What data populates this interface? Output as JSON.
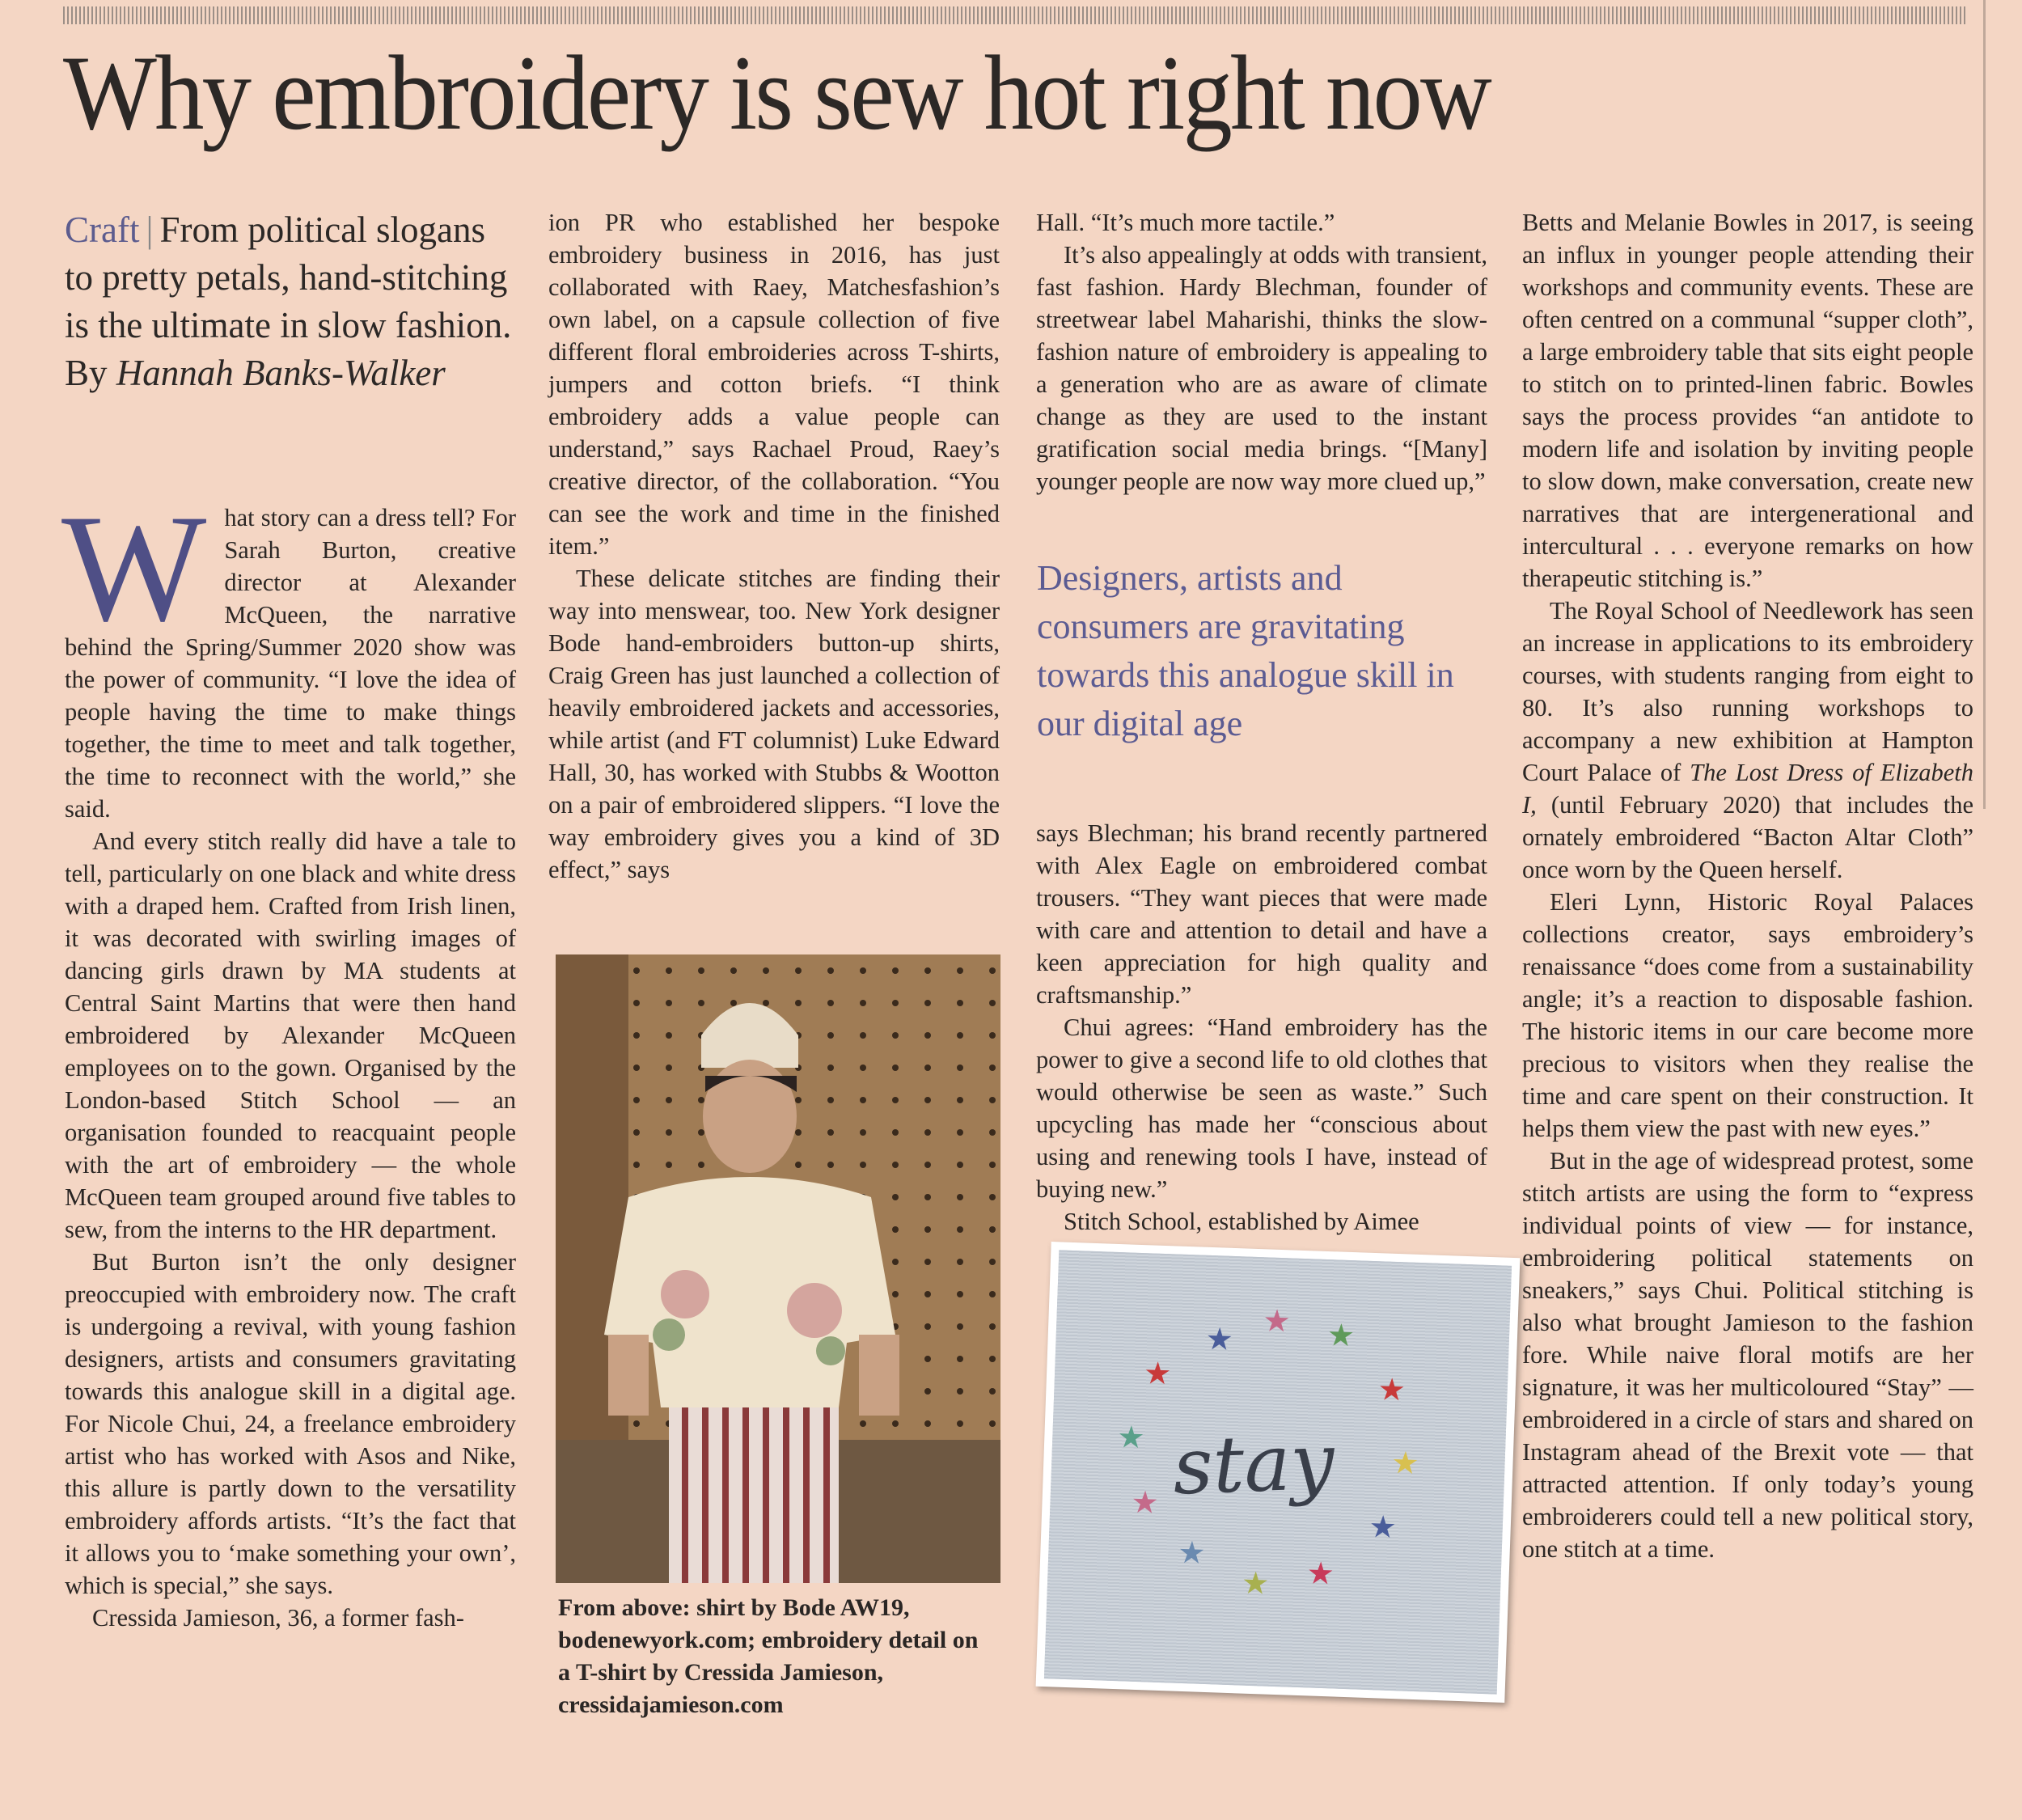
{
  "headline": "Why embroidery is sew hot right now",
  "standfirst": {
    "kicker": "Craft",
    "separator": "|",
    "text": "From political slogans to pretty petals, hand-stitching is the ultimate in slow fashion.",
    "by": "By",
    "author": "Hannah Banks-Walker"
  },
  "columns": {
    "col1": {
      "dropcap": "W",
      "p1": "hat story can a dress tell? For Sarah Burton, creative director at Alexander McQueen, the narrative behind the Spring/Summer 2020 show was the power of community. “I love the idea of people having the time to make things together, the time to meet and talk together, the time to reconnect with the world,” she said.",
      "p2": "And every stitch really did have a tale to tell, particularly on one black and white dress with a draped hem. Crafted from Irish linen, it was decorated with swirling images of dancing girls drawn by MA students at Central Saint Martins that were then hand embroidered by Alexander McQueen employees on to the gown. Organised by the London-based Stitch School — an organisation founded to reacquaint people with the art of embroidery — the whole McQueen team grouped around five tables to sew, from the interns to the HR department.",
      "p3": "But Burton isn’t the only designer preoccupied with embroidery now. The craft is undergoing a revival, with young fashion designers, artists and consumers gravitating towards this analogue skill in a digital age. For Nicole Chui, 24, a freelance embroidery artist who has worked with Asos and Nike, this allure is partly down to the versatility embroidery affords artists. “It’s the fact that it allows you to ‘make something your own’, which is special,” she says.",
      "p4": "Cressida Jamieson, 36, a former fash-"
    },
    "col2": {
      "p1": "ion PR who established her bespoke embroidery business in 2016, has just collaborated with Raey, Matchesfashion’s own label, on a capsule collection of five different floral embroideries across T-shirts, jumpers and cotton briefs. “I think embroidery adds a value people can understand,” says Rachael Proud, Raey’s creative director, of the collaboration. “You can see the work and time in the finished item.”",
      "p2": "These delicate stitches are finding their way into menswear, too. New York designer Bode hand-embroiders button-up shirts, Craig Green has just launched a collection of heavily embroidered jackets and accessories, while artist (and FT columnist) Luke Edward Hall, 30, has worked with Stubbs & Wootton on a pair of embroidered slippers. “I love the way embroidery gives you a kind of 3D effect,” says"
    },
    "col3": {
      "p1": "Hall. “It’s much more tactile.”",
      "p2": "It’s also appealingly at odds with transient, fast fashion. Hardy Blechman, founder of streetwear label Maharishi, thinks the slow-fashion nature of embroidery is appealing to a generation who are as aware of climate change as they are used to the instant gratification social media brings. “[Many] younger people are now way more clued up,”",
      "pullquote": "Designers, artists and consumers are gravitating towards this analogue skill in our digital age",
      "p3": "says Blechman; his brand recently partnered with Alex Eagle on embroidered combat trousers. “They want pieces that were made with care and attention to detail and have a keen appreciation for high quality and craftsmanship.”",
      "p4": "Chui agrees: “Hand embroidery has the power to give a second life to old clothes that would otherwise be seen as waste.” Such upcycling has made her “conscious about using and renewing tools I have, instead of buying new.”",
      "p5": "Stitch School, established by Aimee"
    },
    "col4": {
      "p1": "Betts and Melanie Bowles in 2017, is seeing an influx in younger people attending their workshops and community events. These are often centred on a communal “supper cloth”, a large embroidery table that sits eight people to stitch on to printed-linen fabric. Bowles says the process provides “an antidote to modern life and isolation by inviting people to slow down, make conversation, create new narratives that are intergenerational and intercultural . . . everyone remarks on how therapeutic stitching is.”",
      "p2a": "The Royal School of Needlework has seen an increase in applications to its embroidery courses, with students ranging from eight to 80. It’s also running workshops to accompany a new exhibition at Hampton Court Palace of ",
      "p2title": "The Lost Dress of Elizabeth I,",
      "p2b": " (until February 2020) that includes the ornately embroidered “Bacton Altar Cloth” once worn by the Queen herself.",
      "p3": "Eleri Lynn, Historic Royal Palaces collections creator, says embroidery’s renaissance “does come from a sustainability angle; it’s a reaction to disposable fashion. The historic items in our care become more precious to visitors when they realise the time and care spent on their construction. It helps them view the past with new eyes.”",
      "p4": "But in the age of widespread protest, some stitch artists are using the form to “express individual points of view — for instance, embroidering political statements on sneakers,” says Chui. Political stitching is also what brought Jamieson to the fashion fore. While naive floral motifs are her signature, it was her multicoloured “Stay” — embroidered in a circle of stars and shared on Instagram ahead of the Brexit vote — that attracted attention. If only today’s young embroiderers could tell a new political story, one stitch at a time."
    }
  },
  "caption": "From above: shirt by Bode AW19, bodenewyork.com; embroidery detail on a T-shirt by Cressida Jamieson, cressidajamieson.com",
  "embroidery_word": "stay",
  "colors": {
    "paper": "#f4d6c4",
    "accent": "#5b5b92",
    "text": "#2a2624"
  }
}
